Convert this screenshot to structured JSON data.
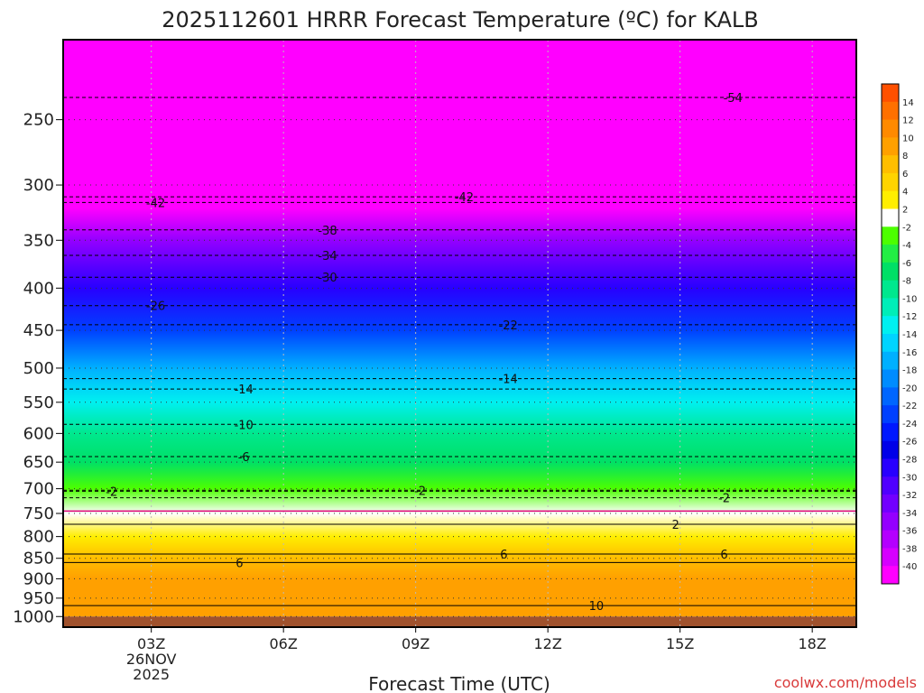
{
  "chart_data": {
    "type": "heatmap",
    "title": "2025112601 HRRR Forecast Temperature (ºC) for KALB",
    "xlabel": "Forecast Time (UTC)",
    "credit": "coolwx.com/models",
    "y_axis": {
      "type": "log-pressure",
      "reversed": true,
      "ticks": [
        250,
        300,
        350,
        400,
        450,
        500,
        550,
        600,
        650,
        700,
        750,
        800,
        850,
        900,
        950,
        1000
      ],
      "grid": "dotted"
    },
    "x_axis": {
      "unit": "hours",
      "range": [
        1,
        19
      ],
      "ticks": [
        {
          "hour": 3,
          "lines": [
            "03Z",
            "26NOV",
            "2025"
          ]
        },
        {
          "hour": 6,
          "lines": [
            "06Z"
          ]
        },
        {
          "hour": 9,
          "lines": [
            "09Z"
          ]
        },
        {
          "hour": 12,
          "lines": [
            "12Z"
          ]
        },
        {
          "hour": 15,
          "lines": [
            "15Z"
          ]
        },
        {
          "hour": 18,
          "lines": [
            "18Z"
          ]
        }
      ],
      "grid": "dotted"
    },
    "colorbar": {
      "unit": "°C",
      "labels": [
        "14",
        "12",
        "10",
        "8",
        "6",
        "4",
        "2",
        "-2",
        "-4",
        "-6",
        "-8",
        "-10",
        "-12",
        "-14",
        "-16",
        "-18",
        "-20",
        "-22",
        "-24",
        "-26",
        "-28",
        "-30",
        "-32",
        "-34",
        "-36",
        "-38",
        "-40"
      ],
      "segment_colors": [
        "#ff5000",
        "#ff7000",
        "#ff8a00",
        "#ffa000",
        "#ffbe00",
        "#ffd400",
        "#ffee00",
        "#ffffff",
        "#4cff00",
        "#22ee44",
        "#00e066",
        "#00e88e",
        "#00eeb8",
        "#00f0f0",
        "#00d4ff",
        "#00b0ff",
        "#008cff",
        "#0066ff",
        "#0040ff",
        "#0018ff",
        "#0000e8",
        "#2800ff",
        "#5000ff",
        "#7200ff",
        "#9400ff",
        "#b400ff",
        "#d600ff",
        "#ff00ff"
      ]
    },
    "temperature_bands_by_pressure": [
      {
        "pressure": 200,
        "temp_c": -56
      },
      {
        "pressure": 320,
        "temp_c": -41
      },
      {
        "pressure": 350,
        "temp_c": -36
      },
      {
        "pressure": 400,
        "temp_c": -30
      },
      {
        "pressure": 450,
        "temp_c": -23
      },
      {
        "pressure": 500,
        "temp_c": -18
      },
      {
        "pressure": 550,
        "temp_c": -13
      },
      {
        "pressure": 600,
        "temp_c": -10
      },
      {
        "pressure": 650,
        "temp_c": -7
      },
      {
        "pressure": 700,
        "temp_c": -3
      },
      {
        "pressure": 750,
        "temp_c": 0
      },
      {
        "pressure": 800,
        "temp_c": 3
      },
      {
        "pressure": 850,
        "temp_c": 6
      },
      {
        "pressure": 900,
        "temp_c": 8
      },
      {
        "pressure": 950,
        "temp_c": 9
      },
      {
        "pressure": 1000,
        "temp_c": 9
      }
    ],
    "contours": [
      {
        "label": "-54",
        "pressure": 235,
        "label_hour": 16.2,
        "dashed": true
      },
      {
        "label": "-42",
        "pressure": 315,
        "label_hour": 3.1,
        "dashed": true
      },
      {
        "label": "-42",
        "pressure": 310,
        "label_hour": 10.1,
        "dashed": true
      },
      {
        "label": "-38",
        "pressure": 340,
        "label_hour": 7.0,
        "dashed": true
      },
      {
        "label": "-34",
        "pressure": 365,
        "label_hour": 7.0,
        "dashed": true
      },
      {
        "label": "-30",
        "pressure": 388,
        "label_hour": 7.0,
        "dashed": true
      },
      {
        "label": "-26",
        "pressure": 420,
        "label_hour": 3.1,
        "dashed": true
      },
      {
        "label": "-22",
        "pressure": 443,
        "label_hour": 11.1,
        "dashed": true
      },
      {
        "label": "-14",
        "pressure": 530,
        "label_hour": 5.1,
        "dashed": true
      },
      {
        "label": "-14",
        "pressure": 515,
        "label_hour": 11.1,
        "dashed": true
      },
      {
        "label": "-10",
        "pressure": 585,
        "label_hour": 5.1,
        "dashed": true
      },
      {
        "label": "-6",
        "pressure": 640,
        "label_hour": 5.1,
        "dashed": true
      },
      {
        "label": "-2",
        "pressure": 705,
        "label_hour": 2.1,
        "dashed": true
      },
      {
        "label": "-2",
        "pressure": 703,
        "label_hour": 9.1,
        "dashed": true
      },
      {
        "label": "-2",
        "pressure": 718,
        "label_hour": 16.0,
        "dashed": true
      },
      {
        "label": "",
        "pressure": 745,
        "label_hour": null,
        "dashed": false,
        "color": "#e0007a"
      },
      {
        "label": "2",
        "pressure": 773,
        "label_hour": 14.9,
        "dashed": false
      },
      {
        "label": "6",
        "pressure": 860,
        "label_hour": 5.0,
        "dashed": false
      },
      {
        "label": "6",
        "pressure": 840,
        "label_hour": 11.0,
        "dashed": false
      },
      {
        "label": "6",
        "pressure": 840,
        "label_hour": 16.0,
        "dashed": false
      },
      {
        "label": "10",
        "pressure": 970,
        "label_hour": 13.1,
        "dashed": false
      }
    ]
  }
}
